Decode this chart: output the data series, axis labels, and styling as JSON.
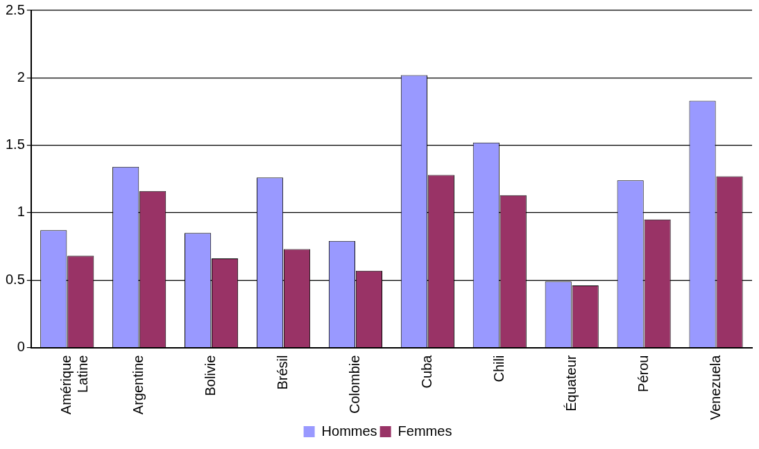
{
  "chart_data": {
    "type": "bar",
    "categories": [
      "Amérique Latine",
      "Argentine",
      "Bolivie",
      "Brésil",
      "Colombie",
      "Cuba",
      "Chili",
      "Équateur",
      "Pérou",
      "Venezuela"
    ],
    "series": [
      {
        "name": "Hommes",
        "color": "#9999ff",
        "values": [
          0.87,
          1.34,
          0.85,
          1.26,
          0.79,
          2.02,
          1.52,
          0.49,
          1.24,
          1.83
        ]
      },
      {
        "name": "Femmes",
        "color": "#993366",
        "values": [
          0.68,
          1.16,
          0.66,
          0.73,
          0.57,
          1.28,
          1.13,
          0.46,
          0.95,
          1.27
        ]
      }
    ],
    "ylim": [
      0,
      2.5
    ],
    "yticks": [
      0,
      0.5,
      1,
      1.5,
      2,
      2.5
    ],
    "grid": "y",
    "legend": "bottom"
  }
}
